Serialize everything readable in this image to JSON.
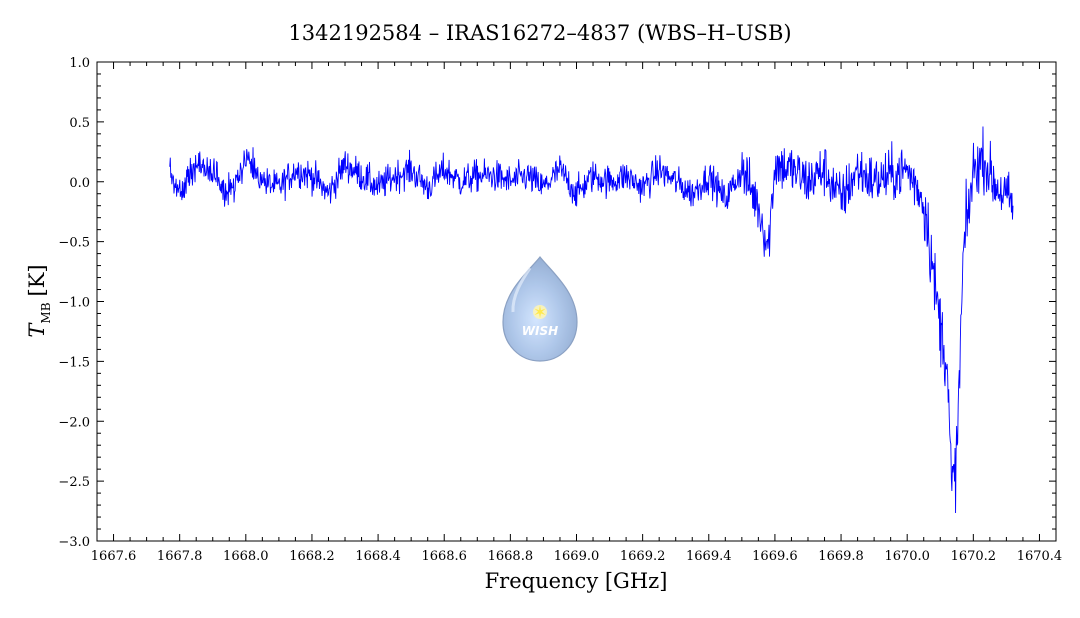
{
  "chart_data": {
    "type": "line",
    "title": "1342192584 – IRAS16272–4837 (WBS–H–USB)",
    "xlabel": "Frequency [GHz]",
    "ylabel_main": "T",
    "ylabel_sub": "MB",
    "ylabel_unit": "[K]",
    "xlim": [
      1667.55,
      1670.45
    ],
    "ylim": [
      -3.0,
      1.0
    ],
    "xticks": [
      1667.6,
      1667.8,
      1668.0,
      1668.2,
      1668.4,
      1668.6,
      1668.8,
      1669.0,
      1669.2,
      1669.4,
      1669.6,
      1669.8,
      1670.0,
      1670.2,
      1670.4
    ],
    "xtick_labels": [
      "1667.6",
      "1667.8",
      "1668.0",
      "1668.2",
      "1668.4",
      "1668.6",
      "1668.8",
      "1669.0",
      "1669.2",
      "1669.4",
      "1669.6",
      "1669.8",
      "1670.0",
      "1670.2",
      "1670.4"
    ],
    "yticks": [
      1.0,
      0.5,
      0.0,
      -0.5,
      -1.0,
      -1.5,
      -2.0,
      -2.5,
      -3.0
    ],
    "ytick_labels": [
      "1.0",
      "0.5",
      "0.0",
      "−0.5",
      "−1.0",
      "−1.5",
      "−2.0",
      "−2.5",
      "−3.0"
    ],
    "grid": false,
    "series_color": "#0000ff",
    "series": [
      {
        "x": [
          1667.77,
          1667.8,
          1667.85,
          1667.9,
          1667.95,
          1668.0,
          1668.05,
          1668.1,
          1668.15,
          1668.2,
          1668.25,
          1668.3,
          1668.35,
          1668.4,
          1668.45,
          1668.5,
          1668.55,
          1668.6,
          1668.65,
          1668.7,
          1668.75,
          1668.8,
          1668.85,
          1668.9,
          1668.95,
          1669.0,
          1669.05,
          1669.1,
          1669.15,
          1669.2,
          1669.25,
          1669.3,
          1669.35,
          1669.4,
          1669.45,
          1669.5,
          1669.55,
          1669.58,
          1669.6,
          1669.65,
          1669.7,
          1669.75,
          1669.8,
          1669.85,
          1669.9,
          1669.95,
          1670.0,
          1670.04,
          1670.06,
          1670.08,
          1670.1,
          1670.12,
          1670.135,
          1670.15,
          1670.17,
          1670.2,
          1670.23,
          1670.26,
          1670.29,
          1670.32
        ],
        "y": [
          0.1,
          -0.1,
          0.15,
          0.05,
          -0.1,
          0.2,
          0.0,
          -0.05,
          0.1,
          0.05,
          -0.1,
          0.15,
          0.05,
          -0.05,
          0.05,
          0.1,
          -0.05,
          0.1,
          0.0,
          0.05,
          0.05,
          0.0,
          0.05,
          -0.05,
          0.1,
          -0.1,
          0.05,
          0.0,
          0.05,
          -0.05,
          0.1,
          0.0,
          -0.1,
          0.05,
          -0.15,
          0.1,
          -0.2,
          -0.55,
          0.15,
          0.1,
          0.0,
          0.1,
          -0.15,
          0.1,
          0.0,
          0.05,
          0.1,
          -0.1,
          -0.3,
          -0.8,
          -1.2,
          -1.5,
          -2.6,
          -2.3,
          -0.6,
          0.1,
          0.2,
          0.0,
          -0.1,
          -0.2
        ]
      }
    ],
    "noise_amplitude": [
      {
        "x_from": 1667.77,
        "x_to": 1669.5,
        "amplitude": 0.17
      },
      {
        "x_from": 1669.5,
        "x_to": 1670.05,
        "amplitude": 0.28
      },
      {
        "x_from": 1670.05,
        "x_to": 1670.2,
        "amplitude": 0.38
      },
      {
        "x_from": 1670.2,
        "x_to": 1670.33,
        "amplitude": 0.3
      }
    ],
    "logo": {
      "text": "WISH",
      "name": "wish-logo"
    }
  }
}
